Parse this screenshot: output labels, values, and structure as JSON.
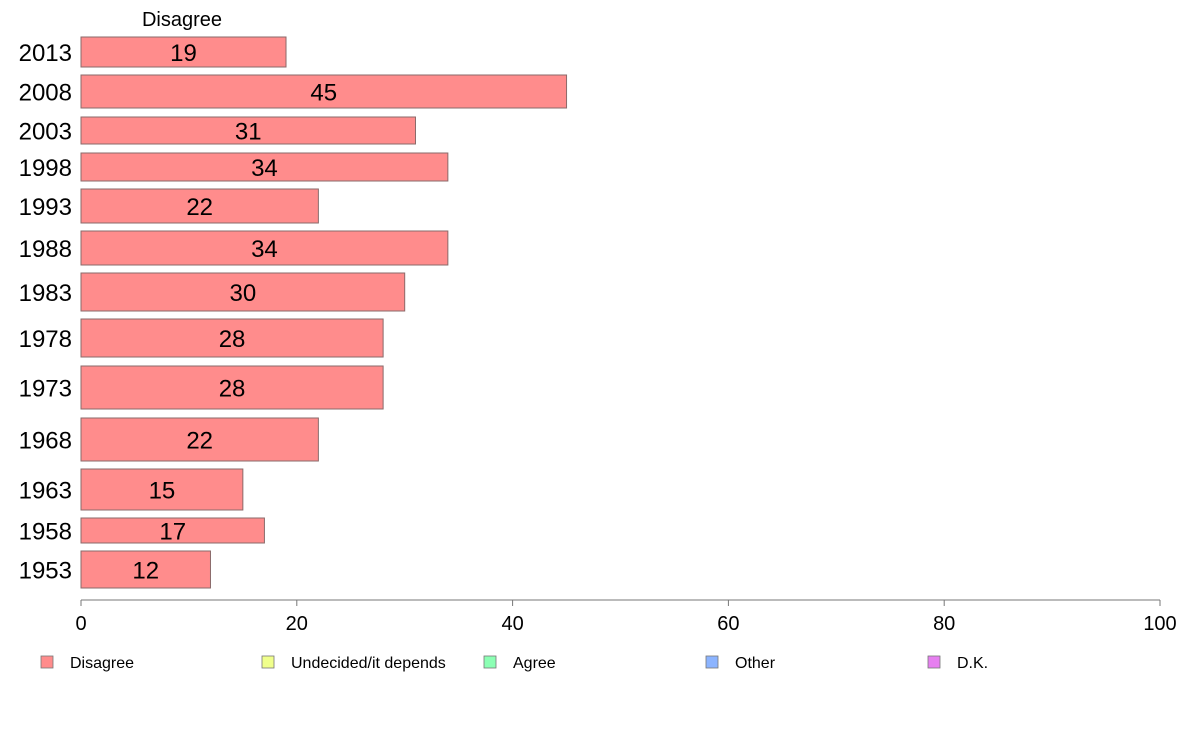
{
  "chart_data": {
    "type": "bar",
    "orientation": "horizontal",
    "column_header": "Disagree",
    "categories": [
      "2013",
      "2008",
      "2003",
      "1998",
      "1993",
      "1988",
      "1983",
      "1978",
      "1973",
      "1968",
      "1963",
      "1958",
      "1953"
    ],
    "series": [
      {
        "name": "Disagree",
        "color": "#ff8c8c",
        "values": [
          19,
          45,
          31,
          34,
          22,
          34,
          30,
          28,
          28,
          22,
          15,
          17,
          12
        ]
      }
    ],
    "data_labels": [
      "19",
      "45",
      "31",
      "34",
      "22",
      "34",
      "30",
      "28",
      "28",
      "22",
      "15",
      "17",
      "12"
    ],
    "xlim": [
      0,
      100
    ],
    "x_ticks": [
      0,
      20,
      40,
      60,
      80,
      100
    ],
    "x_tick_labels": [
      "0",
      "20",
      "40",
      "60",
      "80",
      "100"
    ],
    "grid": false,
    "legend_position": "bottom",
    "legend": [
      {
        "label": "Disagree",
        "color": "#ff8c8c"
      },
      {
        "label": "Undecided/it depends",
        "color": "#f0ff8c"
      },
      {
        "label": "Agree",
        "color": "#8cffb4"
      },
      {
        "label": "Other",
        "color": "#8cb4ff"
      },
      {
        "label": "D.K.",
        "color": "#e67ff0"
      }
    ]
  }
}
